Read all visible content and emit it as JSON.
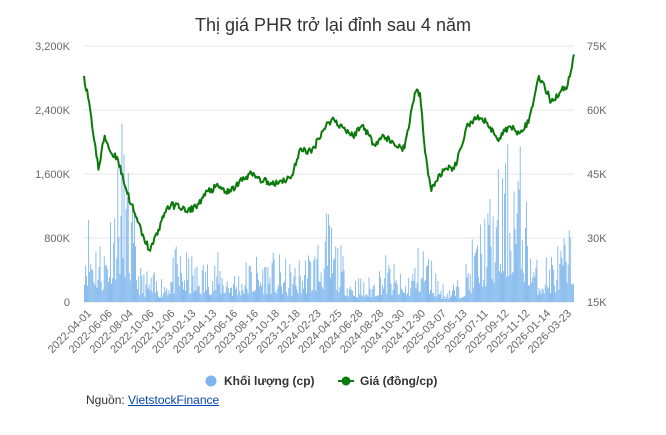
{
  "chart_data": {
    "type": "combo-bar-line",
    "title": "Thị giá PHR trở lại đỉnh sau 4 năm",
    "left_axis": {
      "ticks": [
        "0",
        "800K",
        "1,600K",
        "2,400K",
        "3,200K"
      ],
      "tick_values": [
        0,
        800000,
        1600000,
        2400000,
        3200000
      ],
      "range": [
        0,
        3200000
      ]
    },
    "right_axis": {
      "ticks": [
        "15K",
        "30K",
        "45K",
        "60K",
        "75K"
      ],
      "tick_values": [
        15000,
        30000,
        45000,
        60000,
        75000
      ],
      "range": [
        15000,
        75000
      ]
    },
    "x_labels": [
      "2022-04-01",
      "2022-06-06",
      "2022-08-04",
      "2022-10-06",
      "2022-12-06",
      "2023-02-13",
      "2023-04-13",
      "2023-06-16",
      "2023-08-16",
      "2023-10-18",
      "2023-12-18",
      "2024-02-23",
      "2024-04-25",
      "2024-06-28",
      "2024-08-28",
      "2024-10-30",
      "2024-12-30",
      "2025-03-07",
      "2025-05-13",
      "2025-07-11",
      "2025-09-12",
      "2025-11-12",
      "2026-01-14",
      "2026-03-23"
    ],
    "grid": "horizontal",
    "legend_position": "bottom",
    "colors": {
      "volume": "#7cb5ec",
      "price": "#0b7a0b"
    },
    "volume_series": {
      "name": "Khối lượng (cp)",
      "axis": "left",
      "sampled_values": [
        1450000,
        850000,
        2400000,
        450000,
        350000,
        750000,
        550000,
        650000,
        450000,
        650000,
        650000,
        500000,
        750000,
        1200000,
        450000,
        280000,
        650000,
        300000,
        900000,
        250000,
        300000,
        1100000,
        1700000,
        2400000,
        550000,
        750000,
        1000000
      ]
    },
    "price_series": {
      "name": "Giá (đồng/cp)",
      "axis": "right",
      "points": [
        [
          0,
          68000
        ],
        [
          6,
          60000
        ],
        [
          14,
          46000
        ],
        [
          20,
          54000
        ],
        [
          26,
          50000
        ],
        [
          32,
          49000
        ],
        [
          40,
          42000
        ],
        [
          50,
          35000
        ],
        [
          58,
          30000
        ],
        [
          64,
          27000
        ],
        [
          72,
          32000
        ],
        [
          80,
          37000
        ],
        [
          90,
          38000
        ],
        [
          100,
          36000
        ],
        [
          110,
          38000
        ],
        [
          120,
          41000
        ],
        [
          130,
          42000
        ],
        [
          140,
          40500
        ],
        [
          150,
          43000
        ],
        [
          160,
          45000
        ],
        [
          170,
          44000
        ],
        [
          180,
          42500
        ],
        [
          190,
          43500
        ],
        [
          200,
          44000
        ],
        [
          210,
          51000
        ],
        [
          220,
          50000
        ],
        [
          230,
          55000
        ],
        [
          240,
          58000
        ],
        [
          250,
          56000
        ],
        [
          260,
          54000
        ],
        [
          270,
          56500
        ],
        [
          280,
          52000
        ],
        [
          290,
          54000
        ],
        [
          300,
          52000
        ],
        [
          310,
          51000
        ],
        [
          320,
          64000
        ],
        [
          325,
          64000
        ],
        [
          330,
          50000
        ],
        [
          336,
          41000
        ],
        [
          344,
          45000
        ],
        [
          352,
          46000
        ],
        [
          360,
          47000
        ],
        [
          370,
          56000
        ],
        [
          380,
          58000
        ],
        [
          390,
          57000
        ],
        [
          400,
          53000
        ],
        [
          410,
          56000
        ],
        [
          420,
          55000
        ],
        [
          430,
          57000
        ],
        [
          440,
          68000
        ],
        [
          446,
          65000
        ],
        [
          452,
          62000
        ],
        [
          460,
          64000
        ],
        [
          468,
          66000
        ],
        [
          474,
          73000
        ]
      ]
    }
  },
  "legend": {
    "volume_label": "Khối lượng (cp)",
    "price_label": "Giá (đồng/cp)"
  },
  "source": {
    "label": "Nguồn:",
    "link": "VietstockFinance"
  }
}
